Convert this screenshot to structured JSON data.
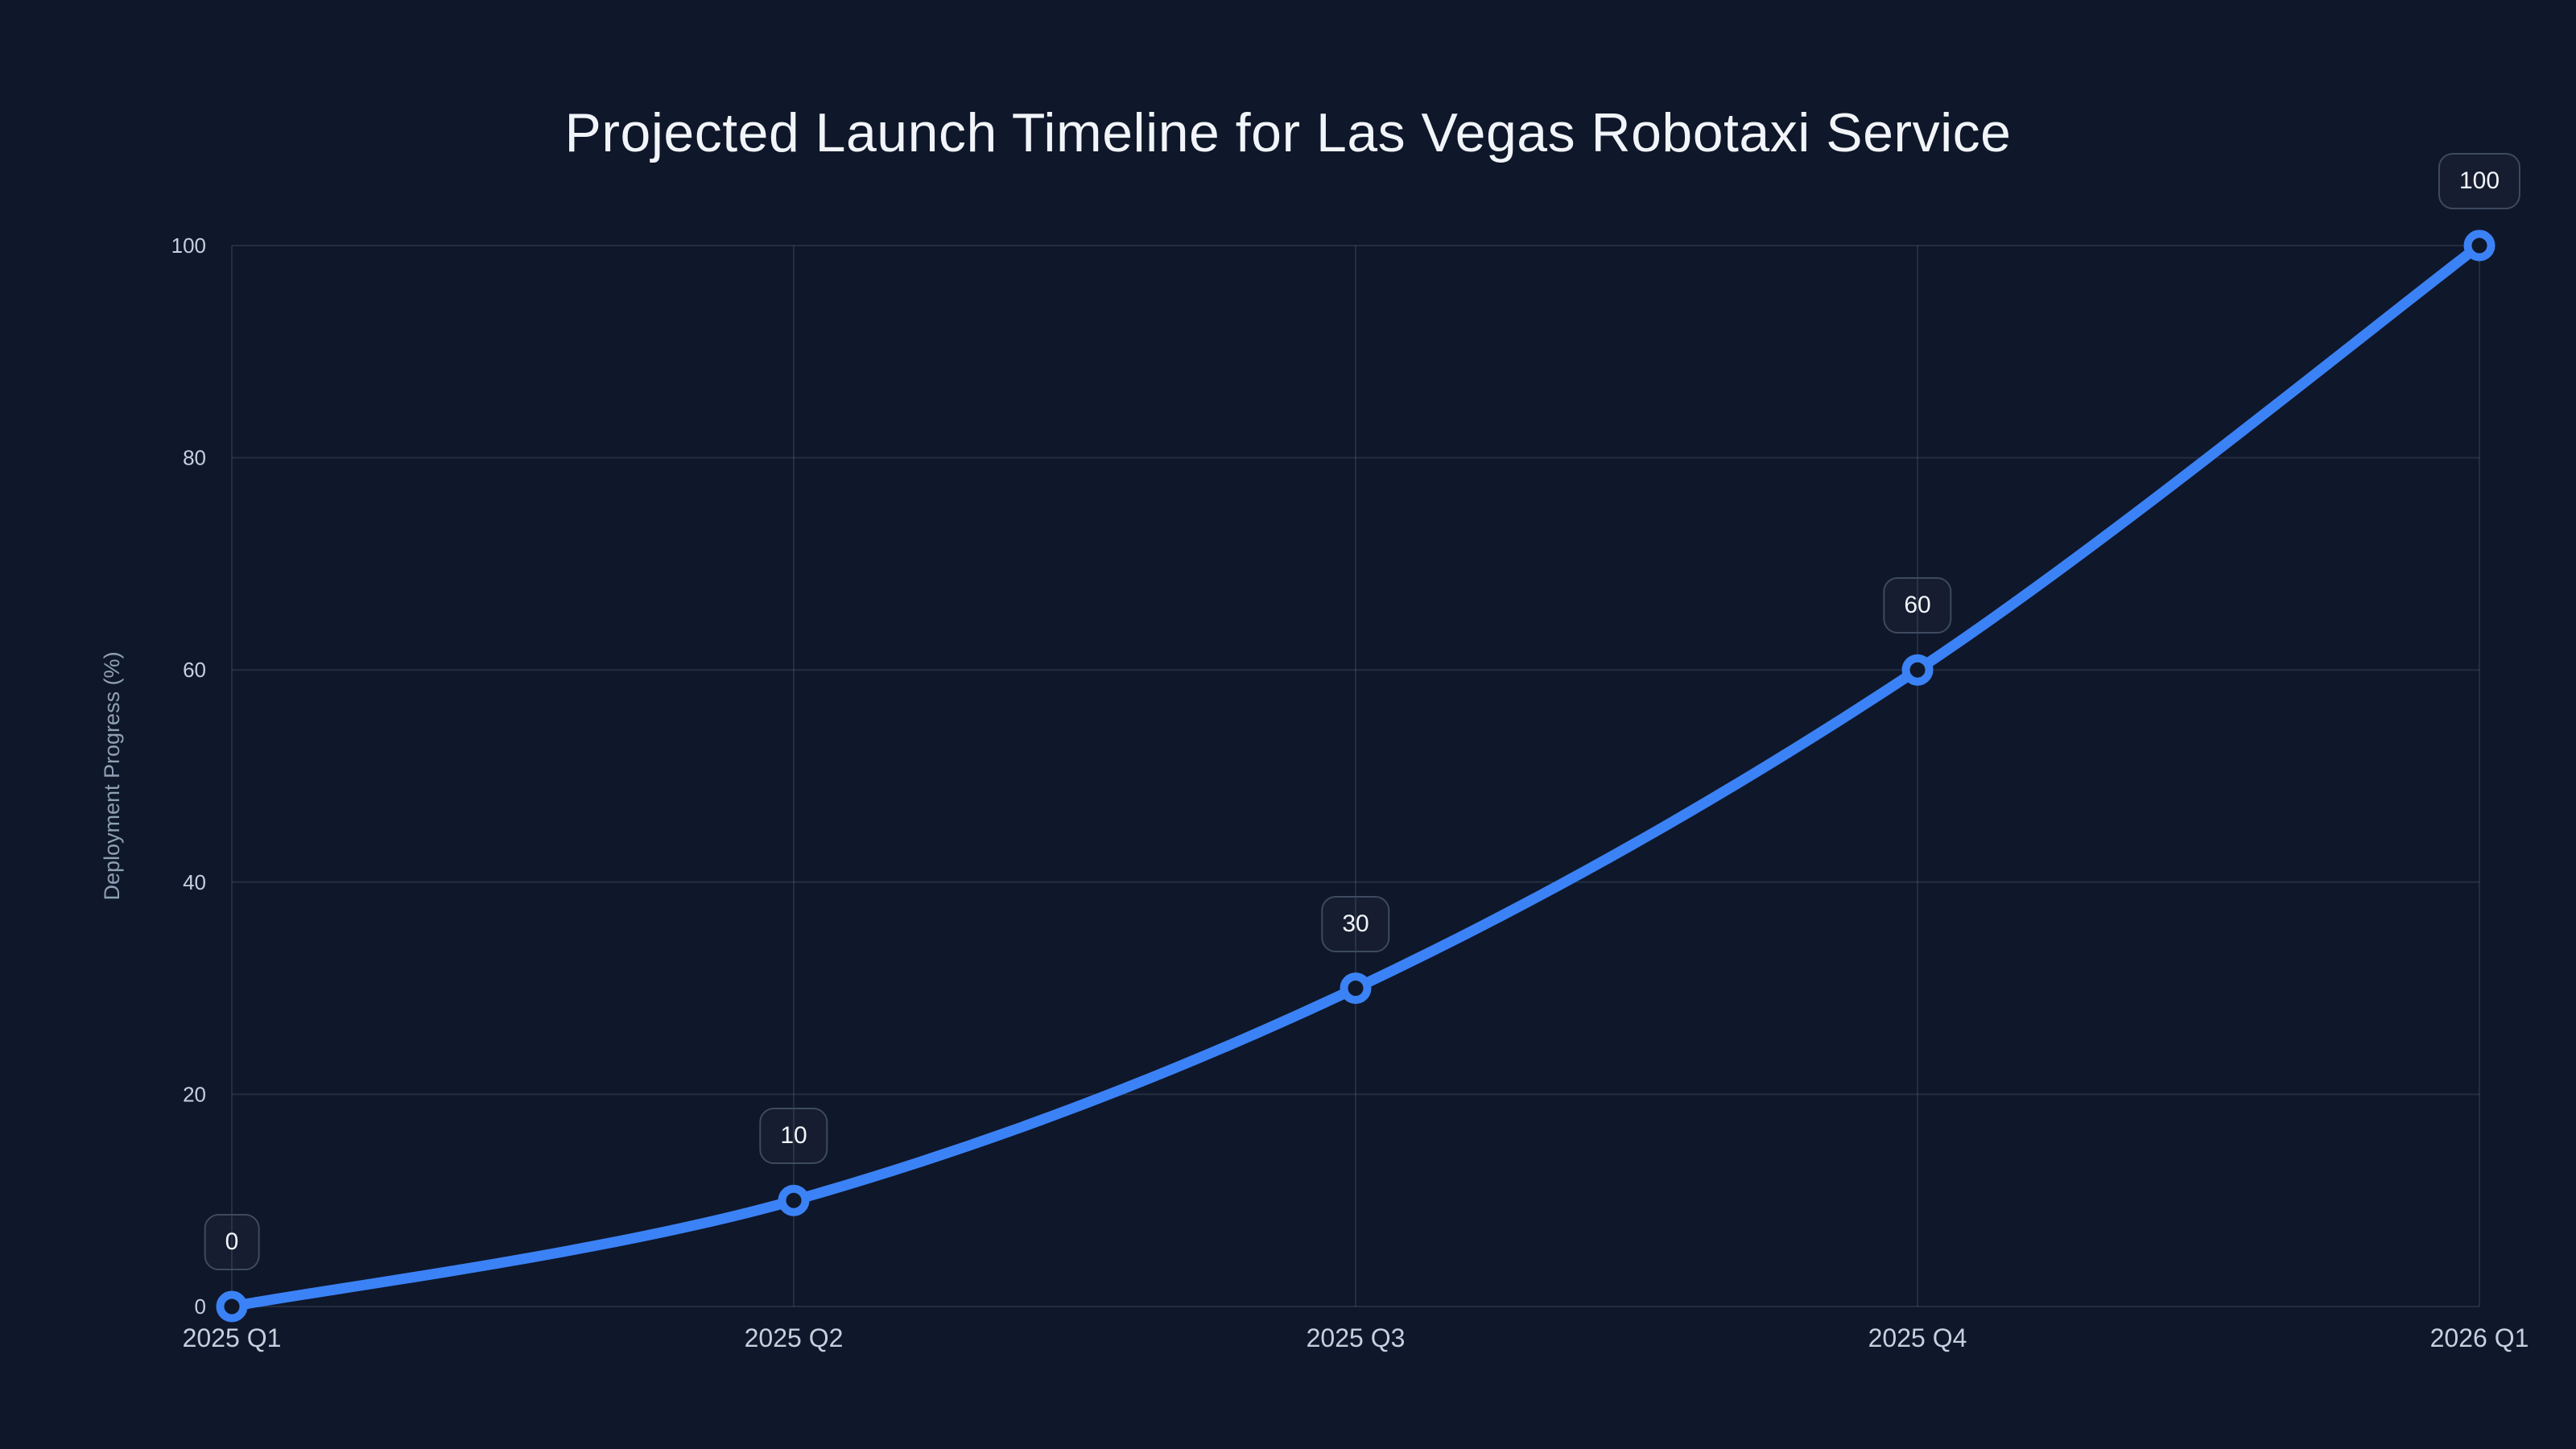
{
  "chart_data": {
    "type": "line",
    "title": "Projected Launch Timeline for Las Vegas Robotaxi Service",
    "xlabel": "",
    "ylabel": "Deployment Progress (%)",
    "categories": [
      "2025 Q1",
      "2025 Q2",
      "2025 Q3",
      "2025 Q4",
      "2026 Q1"
    ],
    "series": [
      {
        "name": "Deployment Progress",
        "values": [
          0,
          10,
          30,
          60,
          100
        ]
      }
    ],
    "point_labels": [
      "0",
      "10",
      "30",
      "60",
      "100"
    ],
    "yticks": [
      0,
      20,
      40,
      60,
      80,
      100
    ],
    "ylim": [
      0,
      100
    ],
    "grid": true,
    "legend": "none",
    "smooth": true,
    "colors": {
      "background": "#0f172a",
      "line": "#3b82f6",
      "marker_fill": "#0f172a",
      "grid": "rgba(148,163,184,0.16)",
      "tick_text": "#c6d0dd",
      "axis_title_text": "#8fa0b5",
      "title_text": "#f1f5f9",
      "label_box_border": "#3d4a5f",
      "label_box_bg": "rgba(148,163,184,0.05)",
      "label_box_text": "#f1f5f9"
    }
  }
}
